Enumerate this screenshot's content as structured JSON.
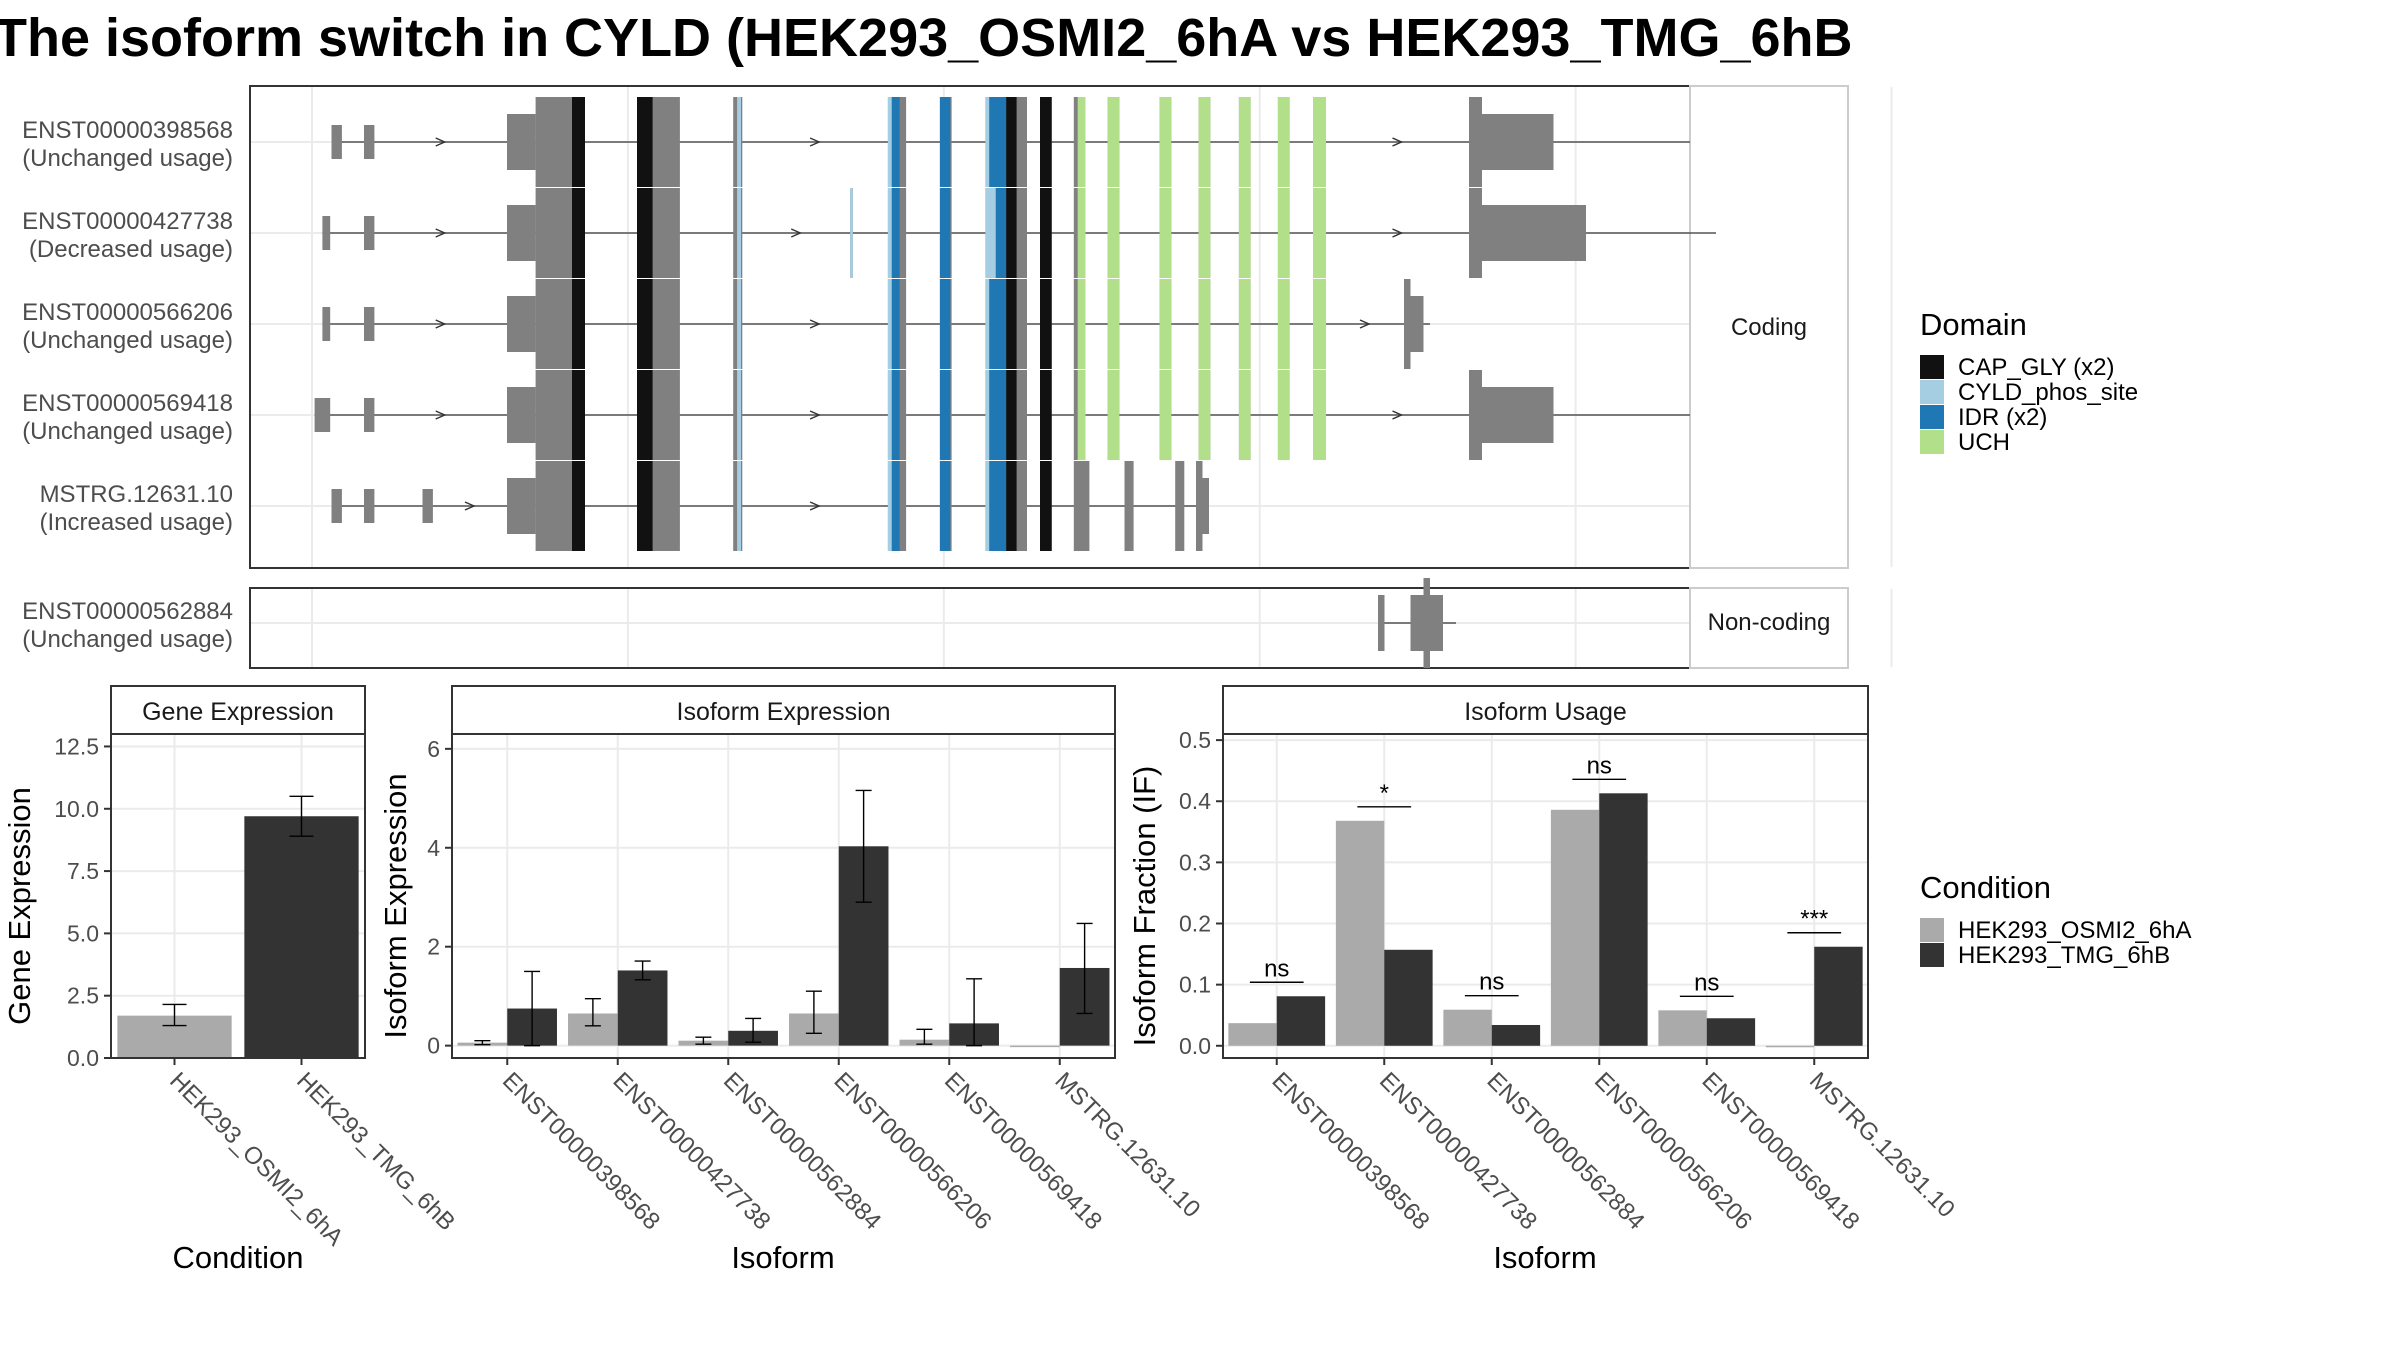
{
  "title": "The isoform switch in CYLD (HEK293_OSMI2_6hA vs HEK293_TMG_6hB",
  "colors": {
    "CAP_GLY (x2)": "#111111",
    "CYLD_phos_site": "#a6cee3",
    "IDR (x2)": "#1f78b4",
    "UCH": "#b2df8a",
    "exon": "#808080",
    "cond1": "#aaaaaa",
    "cond2": "#333333"
  },
  "strips": {
    "coding": "Coding",
    "noncoding": "Non-coding"
  },
  "isoforms": [
    {
      "name": "ENST00000398568",
      "usage": "(Unchanged usage)",
      "group": "coding",
      "start": 20,
      "end": 1060,
      "segments": [
        {
          "s": 15,
          "e": 23,
          "h": "s"
        },
        {
          "s": 40,
          "e": 48,
          "h": "s"
        },
        {
          "s": 150,
          "e": 172,
          "h": "m"
        },
        {
          "s": 172,
          "e": 210,
          "h": "l"
        },
        {
          "s": 250,
          "e": 283,
          "h": "l"
        },
        {
          "s": 324,
          "e": 331,
          "h": "l"
        },
        {
          "s": 443,
          "e": 457,
          "h": "l"
        },
        {
          "s": 483,
          "e": 492,
          "h": "l"
        },
        {
          "s": 518,
          "e": 550,
          "h": "l"
        },
        {
          "s": 560,
          "e": 569,
          "h": "l"
        },
        {
          "s": 586,
          "e": 595,
          "h": "l"
        },
        {
          "s": 612,
          "e": 621,
          "h": "l"
        },
        {
          "s": 652,
          "e": 661,
          "h": "l"
        },
        {
          "s": 682,
          "e": 691,
          "h": "l"
        },
        {
          "s": 713,
          "e": 722,
          "h": "l"
        },
        {
          "s": 743,
          "e": 752,
          "h": "l"
        },
        {
          "s": 770,
          "e": 780,
          "h": "l"
        },
        {
          "s": 890,
          "e": 900,
          "h": "l"
        },
        {
          "s": 900,
          "e": 955,
          "h": "m"
        }
      ],
      "domains": [
        {
          "s": 200,
          "e": 210,
          "d": "CAP_GLY (x2)"
        },
        {
          "s": 250,
          "e": 262,
          "d": "CAP_GLY (x2)"
        },
        {
          "s": 327,
          "e": 330,
          "d": "CYLD_phos_site"
        },
        {
          "s": 443,
          "e": 446,
          "d": "CYLD_phos_site"
        },
        {
          "s": 446,
          "e": 452,
          "d": "IDR (x2)"
        },
        {
          "s": 483,
          "e": 491,
          "d": "IDR (x2)"
        },
        {
          "s": 518,
          "e": 521,
          "d": "CYLD_phos_site"
        },
        {
          "s": 521,
          "e": 534,
          "d": "IDR (x2)"
        },
        {
          "s": 534,
          "e": 542,
          "d": "CAP_GLY (x2)"
        },
        {
          "s": 560,
          "e": 569,
          "d": "CAP_GLY (x2)"
        },
        {
          "s": 589,
          "e": 595,
          "d": "UCH"
        },
        {
          "s": 612,
          "e": 621,
          "d": "UCH"
        },
        {
          "s": 652,
          "e": 661,
          "d": "UCH"
        },
        {
          "s": 682,
          "e": 691,
          "d": "UCH"
        },
        {
          "s": 713,
          "e": 722,
          "d": "UCH"
        },
        {
          "s": 743,
          "e": 752,
          "d": "UCH"
        },
        {
          "s": 770,
          "e": 780,
          "d": "UCH"
        }
      ]
    },
    {
      "name": "ENST00000427738",
      "usage": "(Decreased usage)",
      "group": "coding",
      "start": 8,
      "end": 1080,
      "segments": [
        {
          "s": 8,
          "e": 14,
          "h": "s"
        },
        {
          "s": 40,
          "e": 48,
          "h": "s"
        },
        {
          "s": 150,
          "e": 172,
          "h": "m"
        },
        {
          "s": 172,
          "e": 210,
          "h": "l"
        },
        {
          "s": 250,
          "e": 283,
          "h": "l"
        },
        {
          "s": 324,
          "e": 331,
          "h": "l"
        },
        {
          "s": 414,
          "e": 416,
          "h": "l"
        },
        {
          "s": 443,
          "e": 457,
          "h": "l"
        },
        {
          "s": 483,
          "e": 492,
          "h": "l"
        },
        {
          "s": 518,
          "e": 550,
          "h": "l"
        },
        {
          "s": 560,
          "e": 569,
          "h": "l"
        },
        {
          "s": 586,
          "e": 595,
          "h": "l"
        },
        {
          "s": 612,
          "e": 621,
          "h": "l"
        },
        {
          "s": 652,
          "e": 661,
          "h": "l"
        },
        {
          "s": 682,
          "e": 691,
          "h": "l"
        },
        {
          "s": 713,
          "e": 722,
          "h": "l"
        },
        {
          "s": 743,
          "e": 752,
          "h": "l"
        },
        {
          "s": 770,
          "e": 780,
          "h": "l"
        },
        {
          "s": 890,
          "e": 900,
          "h": "l"
        },
        {
          "s": 900,
          "e": 980,
          "h": "m"
        }
      ],
      "domains": [
        {
          "s": 200,
          "e": 210,
          "d": "CAP_GLY (x2)"
        },
        {
          "s": 250,
          "e": 262,
          "d": "CAP_GLY (x2)"
        },
        {
          "s": 327,
          "e": 330,
          "d": "CYLD_phos_site"
        },
        {
          "s": 414,
          "e": 416,
          "d": "CYLD_phos_site"
        },
        {
          "s": 443,
          "e": 446,
          "d": "CYLD_phos_site"
        },
        {
          "s": 446,
          "e": 452,
          "d": "IDR (x2)"
        },
        {
          "s": 483,
          "e": 491,
          "d": "IDR (x2)"
        },
        {
          "s": 518,
          "e": 526,
          "d": "CYLD_phos_site"
        },
        {
          "s": 526,
          "e": 534,
          "d": "IDR (x2)"
        },
        {
          "s": 534,
          "e": 542,
          "d": "CAP_GLY (x2)"
        },
        {
          "s": 560,
          "e": 569,
          "d": "CAP_GLY (x2)"
        },
        {
          "s": 589,
          "e": 595,
          "d": "UCH"
        },
        {
          "s": 612,
          "e": 621,
          "d": "UCH"
        },
        {
          "s": 652,
          "e": 661,
          "d": "UCH"
        },
        {
          "s": 682,
          "e": 691,
          "d": "UCH"
        },
        {
          "s": 713,
          "e": 722,
          "d": "UCH"
        },
        {
          "s": 743,
          "e": 752,
          "d": "UCH"
        },
        {
          "s": 770,
          "e": 780,
          "d": "UCH"
        }
      ]
    },
    {
      "name": "ENST00000566206",
      "usage": "(Unchanged usage)",
      "group": "coding",
      "start": 8,
      "end": 860,
      "segments": [
        {
          "s": 8,
          "e": 14,
          "h": "s"
        },
        {
          "s": 40,
          "e": 48,
          "h": "s"
        },
        {
          "s": 150,
          "e": 172,
          "h": "m"
        },
        {
          "s": 172,
          "e": 210,
          "h": "l"
        },
        {
          "s": 250,
          "e": 283,
          "h": "l"
        },
        {
          "s": 324,
          "e": 331,
          "h": "l"
        },
        {
          "s": 443,
          "e": 457,
          "h": "l"
        },
        {
          "s": 483,
          "e": 492,
          "h": "l"
        },
        {
          "s": 518,
          "e": 550,
          "h": "l"
        },
        {
          "s": 560,
          "e": 569,
          "h": "l"
        },
        {
          "s": 586,
          "e": 595,
          "h": "l"
        },
        {
          "s": 612,
          "e": 621,
          "h": "l"
        },
        {
          "s": 652,
          "e": 661,
          "h": "l"
        },
        {
          "s": 682,
          "e": 691,
          "h": "l"
        },
        {
          "s": 713,
          "e": 722,
          "h": "l"
        },
        {
          "s": 743,
          "e": 752,
          "h": "l"
        },
        {
          "s": 770,
          "e": 780,
          "h": "l"
        },
        {
          "s": 840,
          "e": 845,
          "h": "l"
        },
        {
          "s": 845,
          "e": 855,
          "h": "m"
        }
      ],
      "domains": [
        {
          "s": 200,
          "e": 210,
          "d": "CAP_GLY (x2)"
        },
        {
          "s": 250,
          "e": 262,
          "d": "CAP_GLY (x2)"
        },
        {
          "s": 327,
          "e": 330,
          "d": "CYLD_phos_site"
        },
        {
          "s": 443,
          "e": 446,
          "d": "CYLD_phos_site"
        },
        {
          "s": 446,
          "e": 452,
          "d": "IDR (x2)"
        },
        {
          "s": 483,
          "e": 491,
          "d": "IDR (x2)"
        },
        {
          "s": 518,
          "e": 521,
          "d": "CYLD_phos_site"
        },
        {
          "s": 521,
          "e": 534,
          "d": "IDR (x2)"
        },
        {
          "s": 534,
          "e": 542,
          "d": "CAP_GLY (x2)"
        },
        {
          "s": 560,
          "e": 569,
          "d": "CAP_GLY (x2)"
        },
        {
          "s": 589,
          "e": 595,
          "d": "UCH"
        },
        {
          "s": 612,
          "e": 621,
          "d": "UCH"
        },
        {
          "s": 652,
          "e": 661,
          "d": "UCH"
        },
        {
          "s": 682,
          "e": 691,
          "d": "UCH"
        },
        {
          "s": 713,
          "e": 722,
          "d": "UCH"
        },
        {
          "s": 743,
          "e": 752,
          "d": "UCH"
        },
        {
          "s": 770,
          "e": 780,
          "d": "UCH"
        }
      ]
    },
    {
      "name": "ENST00000569418",
      "usage": "(Unchanged usage)",
      "group": "coding",
      "start": 2,
      "end": 1060,
      "segments": [
        {
          "s": 2,
          "e": 14,
          "h": "s"
        },
        {
          "s": 40,
          "e": 48,
          "h": "s"
        },
        {
          "s": 150,
          "e": 172,
          "h": "m"
        },
        {
          "s": 172,
          "e": 210,
          "h": "l"
        },
        {
          "s": 250,
          "e": 283,
          "h": "l"
        },
        {
          "s": 324,
          "e": 331,
          "h": "l"
        },
        {
          "s": 443,
          "e": 457,
          "h": "l"
        },
        {
          "s": 483,
          "e": 492,
          "h": "l"
        },
        {
          "s": 518,
          "e": 550,
          "h": "l"
        },
        {
          "s": 560,
          "e": 569,
          "h": "l"
        },
        {
          "s": 586,
          "e": 595,
          "h": "l"
        },
        {
          "s": 612,
          "e": 621,
          "h": "l"
        },
        {
          "s": 652,
          "e": 661,
          "h": "l"
        },
        {
          "s": 682,
          "e": 691,
          "h": "l"
        },
        {
          "s": 713,
          "e": 722,
          "h": "l"
        },
        {
          "s": 743,
          "e": 752,
          "h": "l"
        },
        {
          "s": 770,
          "e": 780,
          "h": "l"
        },
        {
          "s": 890,
          "e": 900,
          "h": "l"
        },
        {
          "s": 900,
          "e": 955,
          "h": "m"
        }
      ],
      "domains": [
        {
          "s": 200,
          "e": 210,
          "d": "CAP_GLY (x2)"
        },
        {
          "s": 250,
          "e": 262,
          "d": "CAP_GLY (x2)"
        },
        {
          "s": 327,
          "e": 330,
          "d": "CYLD_phos_site"
        },
        {
          "s": 443,
          "e": 446,
          "d": "CYLD_phos_site"
        },
        {
          "s": 446,
          "e": 452,
          "d": "IDR (x2)"
        },
        {
          "s": 483,
          "e": 491,
          "d": "IDR (x2)"
        },
        {
          "s": 518,
          "e": 521,
          "d": "CYLD_phos_site"
        },
        {
          "s": 521,
          "e": 534,
          "d": "IDR (x2)"
        },
        {
          "s": 534,
          "e": 542,
          "d": "CAP_GLY (x2)"
        },
        {
          "s": 560,
          "e": 569,
          "d": "CAP_GLY (x2)"
        },
        {
          "s": 589,
          "e": 595,
          "d": "UCH"
        },
        {
          "s": 612,
          "e": 621,
          "d": "UCH"
        },
        {
          "s": 652,
          "e": 661,
          "d": "UCH"
        },
        {
          "s": 682,
          "e": 691,
          "d": "UCH"
        },
        {
          "s": 713,
          "e": 722,
          "d": "UCH"
        },
        {
          "s": 743,
          "e": 752,
          "d": "UCH"
        },
        {
          "s": 770,
          "e": 780,
          "d": "UCH"
        }
      ]
    },
    {
      "name": "MSTRG.12631.10",
      "usage": "(Increased usage)",
      "group": "coding",
      "start": 15,
      "end": 690,
      "segments": [
        {
          "s": 15,
          "e": 23,
          "h": "s"
        },
        {
          "s": 40,
          "e": 48,
          "h": "s"
        },
        {
          "s": 85,
          "e": 93,
          "h": "s"
        },
        {
          "s": 150,
          "e": 172,
          "h": "m"
        },
        {
          "s": 172,
          "e": 210,
          "h": "l"
        },
        {
          "s": 250,
          "e": 283,
          "h": "l"
        },
        {
          "s": 324,
          "e": 331,
          "h": "l"
        },
        {
          "s": 443,
          "e": 457,
          "h": "l"
        },
        {
          "s": 483,
          "e": 492,
          "h": "l"
        },
        {
          "s": 518,
          "e": 550,
          "h": "l"
        },
        {
          "s": 560,
          "e": 569,
          "h": "l"
        },
        {
          "s": 586,
          "e": 598,
          "h": "l"
        },
        {
          "s": 625,
          "e": 632,
          "h": "l"
        },
        {
          "s": 664,
          "e": 671,
          "h": "l"
        },
        {
          "s": 680,
          "e": 685,
          "h": "l"
        },
        {
          "s": 685,
          "e": 690,
          "h": "m"
        }
      ],
      "domains": [
        {
          "s": 200,
          "e": 210,
          "d": "CAP_GLY (x2)"
        },
        {
          "s": 250,
          "e": 262,
          "d": "CAP_GLY (x2)"
        },
        {
          "s": 327,
          "e": 330,
          "d": "CYLD_phos_site"
        },
        {
          "s": 443,
          "e": 446,
          "d": "CYLD_phos_site"
        },
        {
          "s": 446,
          "e": 452,
          "d": "IDR (x2)"
        },
        {
          "s": 483,
          "e": 491,
          "d": "IDR (x2)"
        },
        {
          "s": 518,
          "e": 521,
          "d": "CYLD_phos_site"
        },
        {
          "s": 521,
          "e": 534,
          "d": "IDR (x2)"
        },
        {
          "s": 534,
          "e": 542,
          "d": "CAP_GLY (x2)"
        },
        {
          "s": 560,
          "e": 569,
          "d": "CAP_GLY (x2)"
        }
      ]
    },
    {
      "name": "ENST00000562884",
      "usage": "(Unchanged usage)",
      "group": "noncoding",
      "start": 820,
      "end": 880,
      "segments": [
        {
          "s": 820,
          "e": 825,
          "h": "m"
        },
        {
          "s": 845,
          "e": 855,
          "h": "m"
        },
        {
          "s": 855,
          "e": 860,
          "h": "l"
        },
        {
          "s": 860,
          "e": 870,
          "h": "m"
        }
      ],
      "domains": []
    }
  ],
  "legend_domain": {
    "title": "Domain",
    "items": [
      "CAP_GLY (x2)",
      "CYLD_phos_site",
      "IDR (x2)",
      "UCH"
    ]
  },
  "legend_condition": {
    "title": "Condition",
    "items": [
      "HEK293_OSMI2_6hA",
      "HEK293_TMG_6hB"
    ]
  },
  "chart_data": [
    {
      "type": "bar",
      "title": "Gene Expression",
      "xlabel": "Condition",
      "ylabel": "Gene Expression",
      "categories": [
        "HEK293_OSMI2_6hA",
        "HEK293_TMG_6hB"
      ],
      "values": [
        1.7,
        9.7
      ],
      "err_low": [
        1.3,
        8.9
      ],
      "err_high": [
        2.15,
        10.5
      ],
      "ylim": [
        0,
        13.0
      ],
      "yticks": [
        "0.0",
        "2.5",
        "5.0",
        "7.5",
        "10.0",
        "12.5"
      ]
    },
    {
      "type": "bar",
      "title": "Isoform Expression",
      "xlabel": "Isoform",
      "ylabel": "Isoform Expression",
      "categories": [
        "ENST00000398568",
        "ENST00000427738",
        "ENST00000562884",
        "ENST00000566206",
        "ENST00000569418",
        "MSTRG.12631.10"
      ],
      "series": [
        {
          "name": "HEK293_OSMI2_6hA",
          "values": [
            0.06,
            0.65,
            0.1,
            0.65,
            0.12,
            0.0
          ],
          "err_low": [
            0.02,
            0.4,
            0.03,
            0.25,
            0.03,
            0.0
          ],
          "err_high": [
            0.1,
            0.95,
            0.17,
            1.1,
            0.33,
            0.0
          ]
        },
        {
          "name": "HEK293_TMG_6hB",
          "values": [
            0.75,
            1.52,
            0.3,
            4.03,
            0.45,
            1.57
          ],
          "err_low": [
            0.0,
            1.33,
            0.07,
            2.9,
            0.0,
            0.65
          ],
          "err_high": [
            1.5,
            1.71,
            0.55,
            5.16,
            1.35,
            2.47
          ]
        }
      ],
      "ylim": [
        -0.25,
        6.3
      ],
      "yticks": [
        "0",
        "2",
        "4",
        "6"
      ]
    },
    {
      "type": "bar",
      "title": "Isoform Usage",
      "xlabel": "Isoform",
      "ylabel": "Isoform Fraction (IF)",
      "categories": [
        "ENST00000398568",
        "ENST00000427738",
        "ENST00000562884",
        "ENST00000566206",
        "ENST00000569418",
        "MSTRG.12631.10"
      ],
      "series": [
        {
          "name": "HEK293_OSMI2_6hA",
          "values": [
            0.037,
            0.368,
            0.059,
            0.386,
            0.058,
            0.0
          ]
        },
        {
          "name": "HEK293_TMG_6hB",
          "values": [
            0.081,
            0.157,
            0.034,
            0.413,
            0.045,
            0.162
          ]
        }
      ],
      "significance": [
        "ns",
        "*",
        "ns",
        "ns",
        "ns",
        "***"
      ],
      "ylim": [
        -0.02,
        0.51
      ],
      "yticks": [
        "0.0",
        "0.1",
        "0.2",
        "0.3",
        "0.4",
        "0.5"
      ]
    }
  ]
}
